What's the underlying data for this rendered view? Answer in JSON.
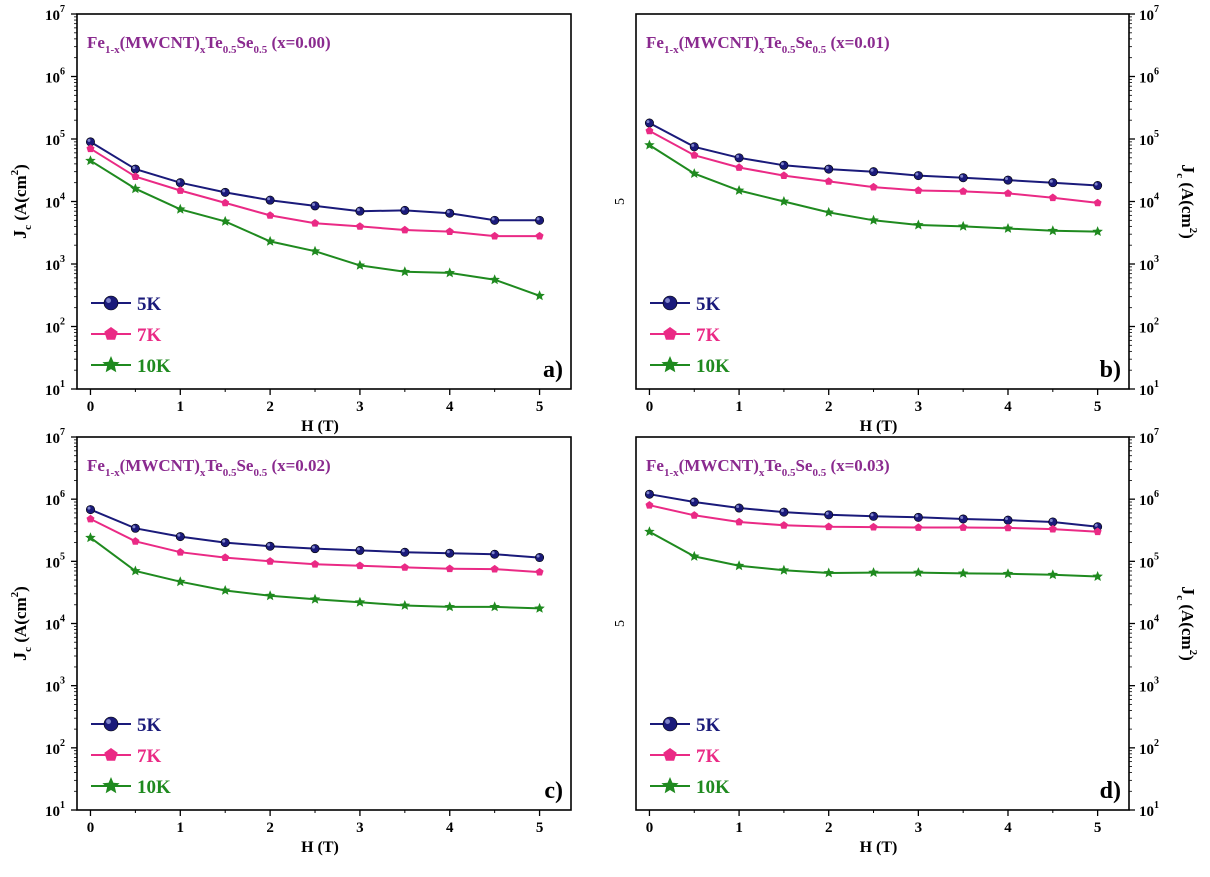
{
  "figure": {
    "panels": [
      {
        "id": "a",
        "tag": "a)",
        "title": {
          "base": "Fe",
          "s1": "1-x",
          "mid": "(MWCNT)",
          "s2": "x",
          "te": "Te",
          "s3": "0.5",
          "se": "Se",
          "s4": "0.5",
          "tail": " (x=0.00)"
        },
        "y_side": "left",
        "x_title": "H (T)",
        "y_title": {
          "j": "J",
          "c": "c",
          "mid": " (A(cm",
          "exp": "2",
          "end": ")"
        },
        "stray": ""
      },
      {
        "id": "b",
        "tag": "b)",
        "title": {
          "base": "Fe",
          "s1": "1-x",
          "mid": "(MWCNT)",
          "s2": "x",
          "te": "Te",
          "s3": "0.5",
          "se": "Se",
          "s4": "0.5",
          "tail": " (x=0.01)"
        },
        "y_side": "right",
        "x_title": "H (T)",
        "y_title": {
          "j": "J",
          "c": "c",
          "mid": " (A(cm",
          "exp": "2",
          "end": ")"
        },
        "stray": "5"
      },
      {
        "id": "c",
        "tag": "c)",
        "title": {
          "base": "Fe",
          "s1": "1-x",
          "mid": "(MWCNT)",
          "s2": "x",
          "te": "Te",
          "s3": "0.5",
          "se": "Se",
          "s4": "0.5",
          "tail": " (x=0.02)"
        },
        "y_side": "left",
        "x_title": "H (T)",
        "y_title": {
          "j": "J",
          "c": "c",
          "mid": " (A(cm",
          "exp": "2",
          "end": ")"
        },
        "stray": ""
      },
      {
        "id": "d",
        "tag": "d)",
        "title": {
          "base": "Fe",
          "s1": "1-x",
          "mid": "(MWCNT)",
          "s2": "x",
          "te": "Te",
          "s3": "0.5",
          "se": "Se",
          "s4": "0.5",
          "tail": " (x=0.03)"
        },
        "y_side": "right",
        "x_title": "H (T)",
        "y_title": {
          "j": "J",
          "c": "c",
          "mid": " (A(cm",
          "exp": "2",
          "end": ")"
        },
        "stray": "5"
      }
    ],
    "colors": {
      "5K": "#1a1a7a",
      "7K": "#ea2a85",
      "10K": "#1f8a1f",
      "title": "#8a2a8f",
      "axis": "#000000"
    },
    "markers": {
      "5K": "sphere",
      "7K": "pentagon",
      "10K": "star"
    }
  },
  "chart_data": [
    {
      "type": "line",
      "panel": "a",
      "y_scale": "log",
      "xlabel": "H (T)",
      "ylabel": "Jc (A(cm2)",
      "xlim": [
        -0.15,
        5.35
      ],
      "ylim": [
        10,
        10000000
      ],
      "x_ticks": [
        0,
        1,
        2,
        3,
        4,
        5
      ],
      "x_tick_labels": [
        "0",
        "1",
        "2",
        "3",
        "4",
        "5"
      ],
      "y_ticks": [
        10,
        100,
        1000,
        10000,
        100000,
        1000000,
        10000000
      ],
      "y_tick_labels": [
        {
          "b": "10",
          "e": "1"
        },
        {
          "b": "10",
          "e": "2"
        },
        {
          "b": "10",
          "e": "3"
        },
        {
          "b": "10",
          "e": "4"
        },
        {
          "b": "10",
          "e": "5"
        },
        {
          "b": "10",
          "e": "6"
        },
        {
          "b": "10",
          "e": "7"
        }
      ],
      "x": [
        0,
        0.5,
        1,
        1.5,
        2,
        2.5,
        3,
        3.5,
        4,
        4.5,
        5
      ],
      "series": [
        {
          "name": "5K",
          "values": [
            90000,
            33000,
            20000,
            14000,
            10500,
            8500,
            7000,
            7200,
            6500,
            5000,
            5000
          ]
        },
        {
          "name": "7K",
          "values": [
            70000,
            25000,
            15000,
            9500,
            6000,
            4500,
            4000,
            3500,
            3300,
            2800,
            2800
          ]
        },
        {
          "name": "10K",
          "values": [
            45000,
            16000,
            7500,
            4800,
            2300,
            1600,
            950,
            750,
            720,
            560,
            310
          ]
        }
      ]
    },
    {
      "type": "line",
      "panel": "b",
      "y_scale": "log",
      "xlabel": "H (T)",
      "ylabel": "Jc (A(cm2)",
      "xlim": [
        -0.15,
        5.35
      ],
      "ylim": [
        10,
        10000000
      ],
      "x_ticks": [
        0,
        1,
        2,
        3,
        4,
        5
      ],
      "x_tick_labels": [
        "0",
        "1",
        "2",
        "3",
        "4",
        "5"
      ],
      "y_ticks": [
        10,
        100,
        1000,
        10000,
        100000,
        1000000,
        10000000
      ],
      "y_tick_labels": [
        {
          "b": "10",
          "e": "1"
        },
        {
          "b": "10",
          "e": "2"
        },
        {
          "b": "10",
          "e": "3"
        },
        {
          "b": "10",
          "e": "4"
        },
        {
          "b": "10",
          "e": "5"
        },
        {
          "b": "10",
          "e": "6"
        },
        {
          "b": "10",
          "e": "7"
        }
      ],
      "x": [
        0,
        0.5,
        1,
        1.5,
        2,
        2.5,
        3,
        3.5,
        4,
        4.5,
        5
      ],
      "series": [
        {
          "name": "5K",
          "values": [
            180000,
            75000,
            50000,
            38000,
            33000,
            30000,
            26000,
            24000,
            22000,
            20000,
            18000
          ]
        },
        {
          "name": "7K",
          "values": [
            135000,
            55000,
            35000,
            26000,
            21000,
            17000,
            15000,
            14500,
            13500,
            11500,
            9500
          ]
        },
        {
          "name": "10K",
          "values": [
            80000,
            28000,
            15000,
            10000,
            6700,
            5000,
            4200,
            4000,
            3700,
            3400,
            3300
          ]
        }
      ]
    },
    {
      "type": "line",
      "panel": "c",
      "y_scale": "log",
      "xlabel": "H (T)",
      "ylabel": "Jc (A(cm2)",
      "xlim": [
        -0.15,
        5.35
      ],
      "ylim": [
        10,
        10000000
      ],
      "x_ticks": [
        0,
        1,
        2,
        3,
        4,
        5
      ],
      "x_tick_labels": [
        "0",
        "1",
        "2",
        "3",
        "4",
        "5"
      ],
      "y_ticks": [
        10,
        100,
        1000,
        10000,
        100000,
        1000000,
        10000000
      ],
      "y_tick_labels": [
        {
          "b": "10",
          "e": "1"
        },
        {
          "b": "10",
          "e": "2"
        },
        {
          "b": "10",
          "e": "3"
        },
        {
          "b": "10",
          "e": "4"
        },
        {
          "b": "10",
          "e": "5"
        },
        {
          "b": "10",
          "e": "6"
        },
        {
          "b": "10",
          "e": "7"
        }
      ],
      "x": [
        0,
        0.5,
        1,
        1.5,
        2,
        2.5,
        3,
        3.5,
        4,
        4.5,
        5
      ],
      "series": [
        {
          "name": "5K",
          "values": [
            680000,
            340000,
            250000,
            200000,
            175000,
            160000,
            150000,
            140000,
            135000,
            130000,
            115000
          ]
        },
        {
          "name": "7K",
          "values": [
            480000,
            210000,
            140000,
            115000,
            100000,
            90000,
            85000,
            80000,
            76000,
            75000,
            67000
          ]
        },
        {
          "name": "10K",
          "values": [
            240000,
            70000,
            47000,
            34000,
            28000,
            24500,
            22000,
            19500,
            18500,
            18500,
            17500
          ]
        }
      ]
    },
    {
      "type": "line",
      "panel": "d",
      "y_scale": "log",
      "xlabel": "H (T)",
      "ylabel": "Jc (A(cm2)",
      "xlim": [
        -0.15,
        5.35
      ],
      "ylim": [
        10,
        10000000
      ],
      "x_ticks": [
        0,
        1,
        2,
        3,
        4,
        5
      ],
      "x_tick_labels": [
        "0",
        "1",
        "2",
        "3",
        "4",
        "5"
      ],
      "y_ticks": [
        10,
        100,
        1000,
        10000,
        100000,
        1000000,
        10000000
      ],
      "y_tick_labels": [
        {
          "b": "10",
          "e": "1"
        },
        {
          "b": "10",
          "e": "2"
        },
        {
          "b": "10",
          "e": "3"
        },
        {
          "b": "10",
          "e": "4"
        },
        {
          "b": "10",
          "e": "5"
        },
        {
          "b": "10",
          "e": "6"
        },
        {
          "b": "10",
          "e": "7"
        }
      ],
      "x": [
        0,
        0.5,
        1,
        1.5,
        2,
        2.5,
        3,
        3.5,
        4,
        4.5,
        5
      ],
      "series": [
        {
          "name": "5K",
          "values": [
            1200000,
            900000,
            720000,
            620000,
            560000,
            530000,
            510000,
            480000,
            460000,
            430000,
            360000
          ]
        },
        {
          "name": "7K",
          "values": [
            800000,
            550000,
            430000,
            380000,
            360000,
            355000,
            350000,
            350000,
            345000,
            330000,
            300000
          ]
        },
        {
          "name": "10K",
          "values": [
            300000,
            120000,
            85000,
            72000,
            65000,
            66000,
            66000,
            64000,
            63000,
            61000,
            57000
          ]
        }
      ]
    }
  ]
}
